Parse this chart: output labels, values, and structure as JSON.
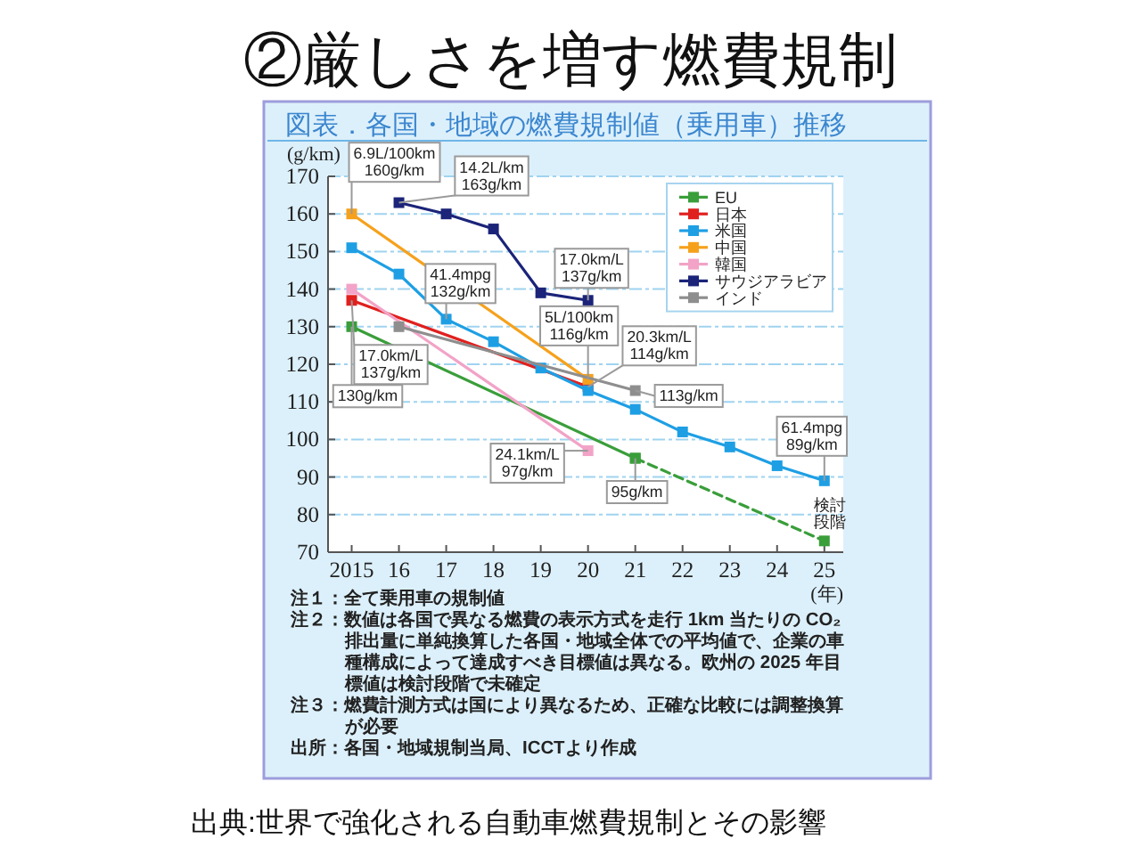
{
  "chart_data": {
    "type": "line",
    "title": "②厳しさを増す燃費規制",
    "subtitle": "図表．各国・地域の燃費規制値（乗用車）推移",
    "xlabel": "(年)",
    "ylabel": "(g/km)",
    "xlim": [
      2014.5,
      2025.4
    ],
    "xticks": [
      {
        "value": 2015,
        "label": "2015"
      },
      {
        "value": 2016,
        "label": "16"
      },
      {
        "value": 2017,
        "label": "17"
      },
      {
        "value": 2018,
        "label": "18"
      },
      {
        "value": 2019,
        "label": "19"
      },
      {
        "value": 2020,
        "label": "20"
      },
      {
        "value": 2021,
        "label": "21"
      },
      {
        "value": 2022,
        "label": "22"
      },
      {
        "value": 2023,
        "label": "23"
      },
      {
        "value": 2024,
        "label": "24"
      },
      {
        "value": 2025,
        "label": "25"
      }
    ],
    "ylim": [
      70,
      170
    ],
    "yticks": [
      70,
      80,
      90,
      100,
      110,
      120,
      130,
      140,
      150,
      160,
      170
    ],
    "grid": "y",
    "legend": "top right",
    "marker": "square",
    "series": [
      {
        "name": "EU",
        "color": "#3a9e3a",
        "x": [
          2015,
          2021
        ],
        "values": [
          130,
          95
        ]
      },
      {
        "name": "日本",
        "color": "#e0201e",
        "x": [
          2015,
          2020
        ],
        "values": [
          137,
          114
        ]
      },
      {
        "name": "米国",
        "color": "#1e9fe4",
        "x": [
          2015,
          2016,
          2017,
          2018,
          2019,
          2020,
          2021,
          2022,
          2023,
          2024,
          2025
        ],
        "values": [
          151,
          144,
          132,
          126,
          119,
          113,
          108,
          102,
          98,
          93,
          89
        ]
      },
      {
        "name": "中国",
        "color": "#f6a11c",
        "x": [
          2015,
          2020
        ],
        "values": [
          160,
          116
        ]
      },
      {
        "name": "韓国",
        "color": "#f2a3c7",
        "x": [
          2015,
          2020
        ],
        "values": [
          140,
          97
        ]
      },
      {
        "name": "サウジアラビア",
        "color": "#1b2479",
        "x": [
          2016,
          2017,
          2018,
          2019,
          2020
        ],
        "values": [
          163,
          160,
          156,
          139,
          137
        ]
      },
      {
        "name": "インド",
        "color": "#8e8e8e",
        "x": [
          2016,
          2021
        ],
        "values": [
          130,
          113
        ]
      },
      {
        "color": "#3a9e3a",
        "x": [
          2021,
          2025
        ],
        "values": [
          95,
          73
        ],
        "line_style": "dashed"
      }
    ],
    "annotations": [
      {
        "text": "6.9L/100km\n160g/km",
        "x": 2015,
        "y": 160
      },
      {
        "text": "14.2L/km\n163g/km",
        "x": 2016,
        "y": 163
      },
      {
        "text": "41.4mpg\n132g/km",
        "x": 2017,
        "y": 132
      },
      {
        "text": "17.0km/L\n137g/km",
        "x": 2020,
        "y": 137
      },
      {
        "text": "5L/100km\n116g/km",
        "x": 2020,
        "y": 116
      },
      {
        "text": "20.3km/L\n114g/km",
        "x": 2020,
        "y": 114
      },
      {
        "text": "17.0km/L\n137g/km",
        "x": 2015,
        "y": 137
      },
      {
        "text": "130g/km",
        "x": 2015,
        "y": 130
      },
      {
        "text": "113g/km",
        "x": 2021,
        "y": 113
      },
      {
        "text": "24.1km/L\n97g/km",
        "x": 2020,
        "y": 97
      },
      {
        "text": "95g/km",
        "x": 2021,
        "y": 95
      },
      {
        "text": "61.4mpg\n89g/km",
        "x": 2025,
        "y": 89
      },
      {
        "text": "検討段階",
        "x": 2025,
        "y": 73
      },
      "注１：全て乗用車の規制値",
      "注２：数値は各国で異なる燃費の表示方式を走行 1km 当たりの CO₂ 排出量に単純換算した各国・地域全体での平均値で、企業の車種構成によって達成すべき目標値は異なる。欧州の 2025 年目標値は検討段階で未確定",
      "注３：燃費計測方式は国により異なるため、正確な比較には調整換算が必要",
      "出所：各国・地域規制当局、ICCTより作成",
      "出典:世界で強化される自動車燃費規制とその影響"
    ]
  }
}
